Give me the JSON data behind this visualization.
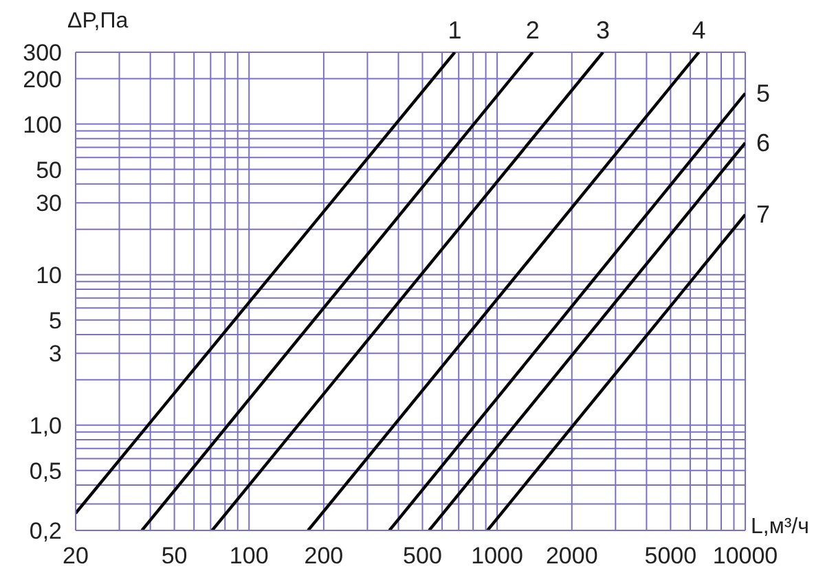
{
  "chart_data": {
    "type": "line",
    "xlabel": "L,м³/ч",
    "ylabel": "ΔP,Па",
    "log": "xy",
    "grid": true,
    "legend": false,
    "marker": "none",
    "line_style": "solid",
    "xlim": [
      20,
      10000
    ],
    "xticks": [
      20,
      {
        "value": 30,
        "label": null
      },
      {
        "value": 40,
        "label": null
      },
      50,
      {
        "value": 60,
        "label": null
      },
      {
        "value": 70,
        "label": null
      },
      {
        "value": 80,
        "label": null
      },
      {
        "value": 90,
        "label": null
      },
      100,
      200,
      {
        "value": 300,
        "label": null
      },
      {
        "value": 400,
        "label": null
      },
      500,
      {
        "value": 600,
        "label": null
      },
      {
        "value": 700,
        "label": null
      },
      {
        "value": 800,
        "label": null
      },
      {
        "value": 900,
        "label": null
      },
      1000,
      2000,
      {
        "value": 3000,
        "label": null
      },
      {
        "value": 4000,
        "label": null
      },
      5000,
      {
        "value": 6000,
        "label": null
      },
      {
        "value": 7000,
        "label": null
      },
      {
        "value": 8000,
        "label": null
      },
      {
        "value": 9000,
        "label": null
      },
      10000
    ],
    "ylim": [
      0.2,
      300
    ],
    "yticks": [
      {
        "value": 0.2,
        "label": "0,2"
      },
      {
        "value": 0.3,
        "label": null
      },
      {
        "value": 0.4,
        "label": null
      },
      {
        "value": 0.5,
        "label": "0,5"
      },
      {
        "value": 0.6,
        "label": null
      },
      {
        "value": 0.7,
        "label": null
      },
      {
        "value": 0.8,
        "label": null
      },
      {
        "value": 0.9,
        "label": null
      },
      {
        "value": 1,
        "label": "1,0"
      },
      {
        "value": 2,
        "label": null
      },
      3,
      {
        "value": 4,
        "label": null
      },
      5,
      {
        "value": 6,
        "label": null
      },
      {
        "value": 7,
        "label": null
      },
      {
        "value": 8,
        "label": null
      },
      {
        "value": 9,
        "label": null
      },
      10,
      {
        "value": 20,
        "label": null
      },
      30,
      {
        "value": 40,
        "label": null
      },
      50,
      {
        "value": 60,
        "label": null
      },
      {
        "value": 70,
        "label": null
      },
      {
        "value": 80,
        "label": null
      },
      {
        "value": 90,
        "label": null
      },
      100,
      200,
      300
    ],
    "series": [
      {
        "name": "1",
        "color": "#000000",
        "x": [
          20,
          675
        ],
        "values": [
          0.26,
          300
        ]
      },
      {
        "name": "2",
        "color": "#000000",
        "x": [
          37,
          1390
        ],
        "values": [
          0.2,
          300
        ]
      },
      {
        "name": "3",
        "color": "#000000",
        "x": [
          71,
          2670
        ],
        "values": [
          0.2,
          300
        ]
      },
      {
        "name": "4",
        "color": "#000000",
        "x": [
          173,
          6500
        ],
        "values": [
          0.2,
          300
        ]
      },
      {
        "name": "5",
        "color": "#000000",
        "x": [
          368,
          10000
        ],
        "values": [
          0.2,
          160
        ]
      },
      {
        "name": "6",
        "color": "#000000",
        "x": [
          532,
          10000
        ],
        "values": [
          0.2,
          75
        ]
      },
      {
        "name": "7",
        "color": "#000000",
        "x": [
          914,
          10000
        ],
        "values": [
          0.2,
          25
        ]
      }
    ]
  }
}
